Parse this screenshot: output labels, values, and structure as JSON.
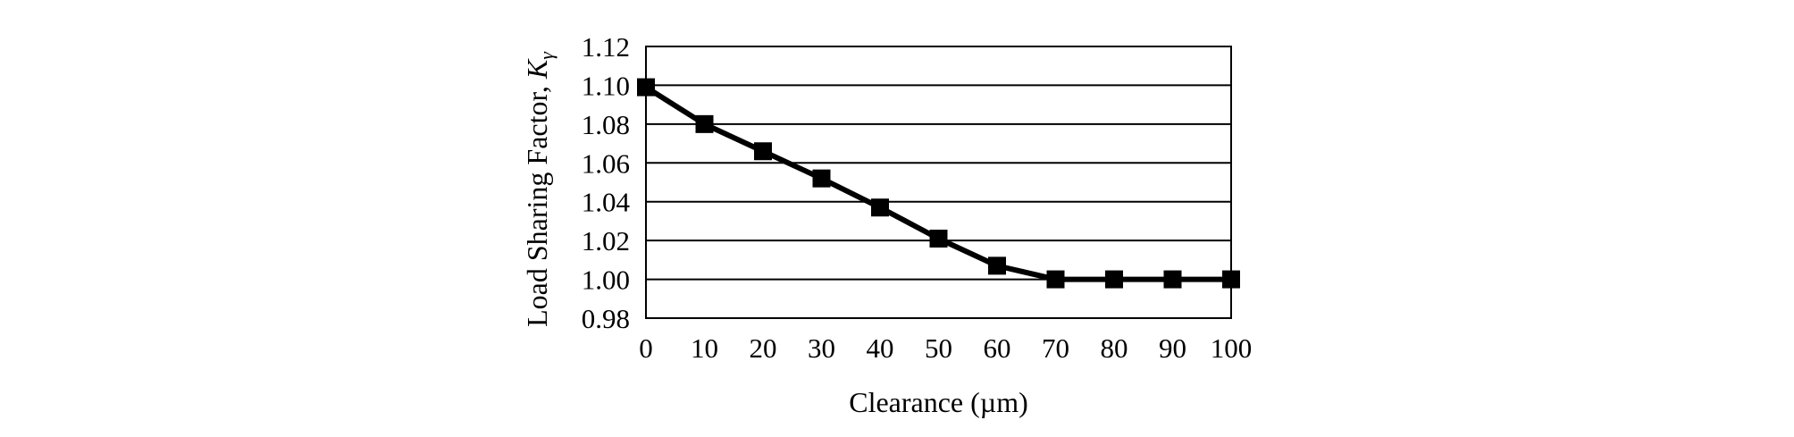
{
  "chart_data": {
    "type": "line",
    "title": "",
    "xlabel": "Clearance (µm)",
    "ylabel": {
      "text": "Load Sharing Factor, ",
      "symbol": "K",
      "subscript": "γ"
    },
    "x_ticks": [
      "0",
      "10",
      "20",
      "30",
      "40",
      "50",
      "60",
      "70",
      "80",
      "90",
      "100"
    ],
    "y_ticks": [
      "0.98",
      "1.00",
      "1.02",
      "1.04",
      "1.06",
      "1.08",
      "1.10",
      "1.12"
    ],
    "xlim": [
      0,
      100
    ],
    "ylim": [
      0.98,
      1.12
    ],
    "grid": "horizontal",
    "legend": "none",
    "series": [
      {
        "x": [
          0,
          10,
          20,
          30,
          40,
          50,
          60,
          70,
          80,
          90,
          100
        ],
        "y": [
          1.099,
          1.08,
          1.066,
          1.052,
          1.037,
          1.021,
          1.007,
          1.0,
          1.0,
          1.0,
          1.0
        ],
        "marker": "square",
        "color": "#000000"
      }
    ]
  }
}
